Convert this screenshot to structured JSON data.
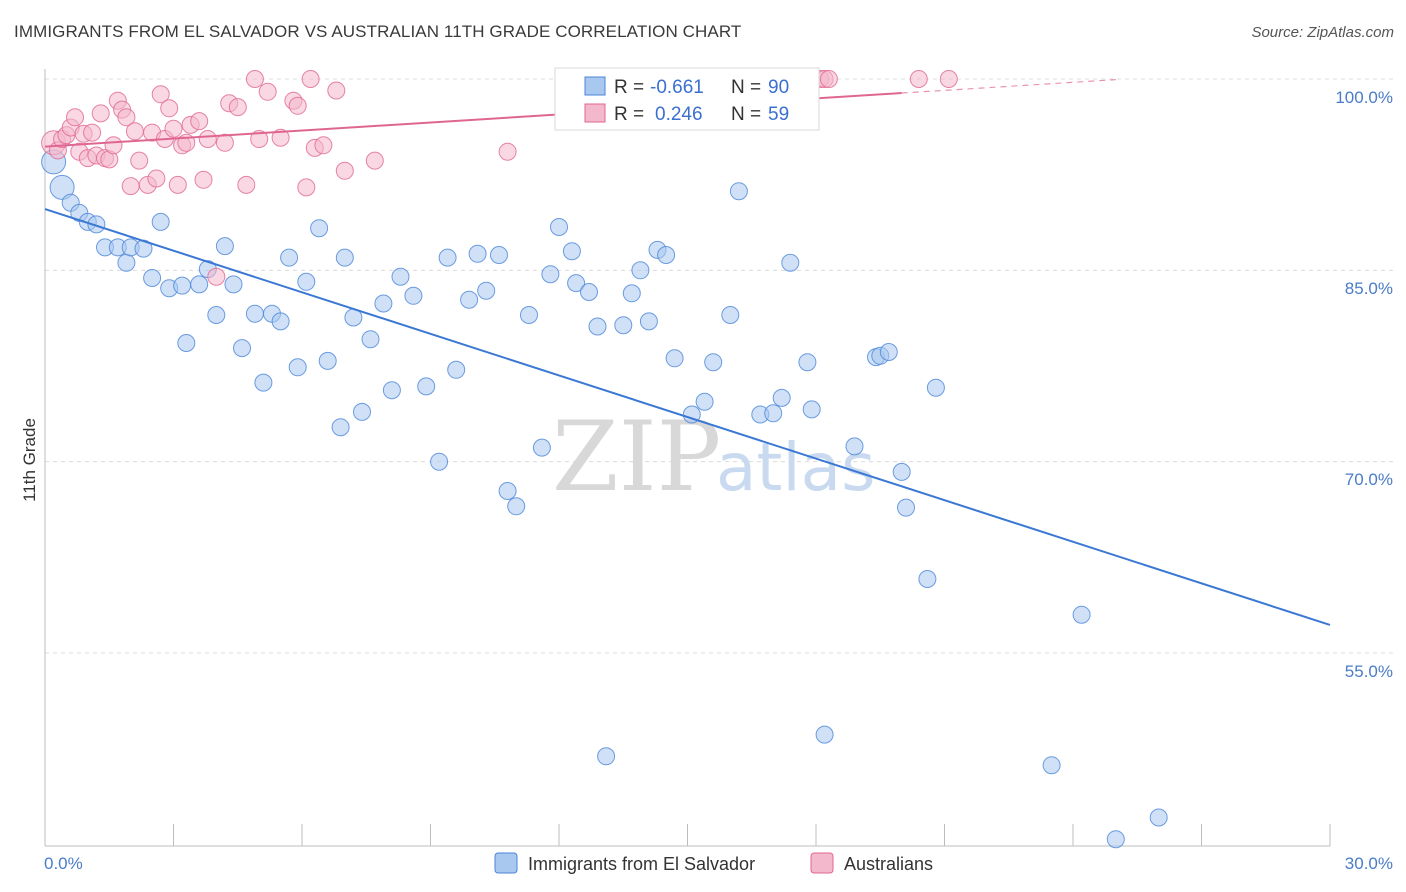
{
  "chart_data": {
    "type": "scatter",
    "title": "IMMIGRANTS FROM EL SALVADOR VS AUSTRALIAN 11TH GRADE CORRELATION CHART",
    "source": "Source: ZipAtlas.com",
    "ylabel": "11th Grade",
    "xlim": [
      0,
      30
    ],
    "ylim": [
      39,
      101
    ],
    "x_tick_labels": [
      "0.0%",
      "30.0%"
    ],
    "y_ticks": [
      100,
      85,
      70,
      55
    ],
    "y_tick_labels": [
      "100.0%",
      "85.0%",
      "70.0%",
      "55.0%"
    ],
    "watermark": {
      "zip": "ZIP",
      "atlas": "atlas"
    },
    "legend": {
      "rows": [
        {
          "r_label": "R =",
          "r_value": "-0.661",
          "n_label": "N =",
          "n_value": "90"
        },
        {
          "r_label": "R =",
          "r_value": "0.246",
          "n_label": "N =",
          "n_value": "59"
        }
      ]
    },
    "colors": {
      "blue": "#4a86d8",
      "blue_fill": "#a9c8f0",
      "pink": "#e06692",
      "pink_fill": "#f4b8cc"
    },
    "series": [
      {
        "name": "Immigrants from El Salvador",
        "color": "#4a86d8",
        "trend": {
          "x": [
            0,
            30
          ],
          "y": [
            89.8,
            57.2
          ]
        },
        "points": [
          [
            0.2,
            93.5
          ],
          [
            0.4,
            91.5
          ],
          [
            0.6,
            90.3
          ],
          [
            0.8,
            89.5
          ],
          [
            1.0,
            88.8
          ],
          [
            1.2,
            88.6
          ],
          [
            1.4,
            86.8
          ],
          [
            1.7,
            86.8
          ],
          [
            1.9,
            85.6
          ],
          [
            2.0,
            86.8
          ],
          [
            2.3,
            86.7
          ],
          [
            2.5,
            84.4
          ],
          [
            2.7,
            88.8
          ],
          [
            2.9,
            83.6
          ],
          [
            3.2,
            83.8
          ],
          [
            3.3,
            79.3
          ],
          [
            3.6,
            83.9
          ],
          [
            3.8,
            85.1
          ],
          [
            4.0,
            81.5
          ],
          [
            4.2,
            86.9
          ],
          [
            4.4,
            83.9
          ],
          [
            4.6,
            78.9
          ],
          [
            4.9,
            81.6
          ],
          [
            5.1,
            76.2
          ],
          [
            5.3,
            81.6
          ],
          [
            5.5,
            81.0
          ],
          [
            5.7,
            86.0
          ],
          [
            5.9,
            77.4
          ],
          [
            6.1,
            84.1
          ],
          [
            6.4,
            88.3
          ],
          [
            6.6,
            77.9
          ],
          [
            6.9,
            72.7
          ],
          [
            7.0,
            86.0
          ],
          [
            7.2,
            81.3
          ],
          [
            7.4,
            73.9
          ],
          [
            7.6,
            79.6
          ],
          [
            7.9,
            82.4
          ],
          [
            8.1,
            75.6
          ],
          [
            8.3,
            84.5
          ],
          [
            8.6,
            83.0
          ],
          [
            8.9,
            75.9
          ],
          [
            9.2,
            70.0
          ],
          [
            9.4,
            86.0
          ],
          [
            9.6,
            77.2
          ],
          [
            9.9,
            82.7
          ],
          [
            10.1,
            86.3
          ],
          [
            10.3,
            83.4
          ],
          [
            10.6,
            86.2
          ],
          [
            10.8,
            67.7
          ],
          [
            11.0,
            66.5
          ],
          [
            11.3,
            81.5
          ],
          [
            11.6,
            71.1
          ],
          [
            11.8,
            84.7
          ],
          [
            12.0,
            88.4
          ],
          [
            12.3,
            86.5
          ],
          [
            12.4,
            84.0
          ],
          [
            12.7,
            83.3
          ],
          [
            12.9,
            80.6
          ],
          [
            13.1,
            46.9
          ],
          [
            13.5,
            80.7
          ],
          [
            13.7,
            83.2
          ],
          [
            13.9,
            85.0
          ],
          [
            14.1,
            81.0
          ],
          [
            14.3,
            86.6
          ],
          [
            14.5,
            86.2
          ],
          [
            14.7,
            78.1
          ],
          [
            15.1,
            73.7
          ],
          [
            15.4,
            74.7
          ],
          [
            15.6,
            77.8
          ],
          [
            16.0,
            81.5
          ],
          [
            16.2,
            91.2
          ],
          [
            16.7,
            73.7
          ],
          [
            17.0,
            73.8
          ],
          [
            17.2,
            75.0
          ],
          [
            17.4,
            85.6
          ],
          [
            17.8,
            77.8
          ],
          [
            17.9,
            74.1
          ],
          [
            18.2,
            48.6
          ],
          [
            18.9,
            71.2
          ],
          [
            19.4,
            78.2
          ],
          [
            19.5,
            78.3
          ],
          [
            19.7,
            78.6
          ],
          [
            20.0,
            69.2
          ],
          [
            20.1,
            66.4
          ],
          [
            20.6,
            60.8
          ],
          [
            20.8,
            75.8
          ],
          [
            23.5,
            46.2
          ],
          [
            24.2,
            58.0
          ],
          [
            25.0,
            40.4
          ],
          [
            26.0,
            42.1
          ]
        ]
      },
      {
        "name": "Australians",
        "color": "#e06692",
        "trend": {
          "x": [
            0,
            20
          ],
          "y": [
            94.7,
            98.9
          ]
        },
        "trend_dashed": {
          "x": [
            20,
            25
          ],
          "y": [
            98.9,
            99.95
          ]
        },
        "points": [
          [
            0.2,
            95.0
          ],
          [
            0.3,
            94.4
          ],
          [
            0.4,
            95.3
          ],
          [
            0.5,
            95.6
          ],
          [
            0.6,
            96.2
          ],
          [
            0.7,
            97.0
          ],
          [
            0.8,
            94.3
          ],
          [
            0.9,
            95.7
          ],
          [
            1.0,
            93.8
          ],
          [
            1.1,
            95.8
          ],
          [
            1.2,
            94.0
          ],
          [
            1.3,
            97.3
          ],
          [
            1.4,
            93.8
          ],
          [
            1.5,
            93.7
          ],
          [
            1.6,
            94.8
          ],
          [
            1.7,
            98.3
          ],
          [
            1.8,
            97.6
          ],
          [
            1.9,
            97.0
          ],
          [
            2.0,
            91.6
          ],
          [
            2.1,
            95.9
          ],
          [
            2.2,
            93.6
          ],
          [
            2.4,
            91.7
          ],
          [
            2.5,
            95.8
          ],
          [
            2.6,
            92.2
          ],
          [
            2.7,
            98.8
          ],
          [
            2.8,
            95.3
          ],
          [
            2.9,
            97.7
          ],
          [
            3.0,
            96.1
          ],
          [
            3.1,
            91.7
          ],
          [
            3.2,
            94.8
          ],
          [
            3.3,
            95.0
          ],
          [
            3.4,
            96.4
          ],
          [
            3.6,
            96.7
          ],
          [
            3.7,
            92.1
          ],
          [
            3.8,
            95.3
          ],
          [
            4.0,
            84.5
          ],
          [
            4.2,
            95.0
          ],
          [
            4.3,
            98.1
          ],
          [
            4.5,
            97.8
          ],
          [
            4.7,
            91.7
          ],
          [
            4.9,
            100.0
          ],
          [
            5.0,
            95.3
          ],
          [
            5.2,
            99.0
          ],
          [
            5.5,
            95.4
          ],
          [
            5.8,
            98.3
          ],
          [
            5.9,
            97.9
          ],
          [
            6.1,
            91.5
          ],
          [
            6.2,
            100.0
          ],
          [
            6.3,
            94.6
          ],
          [
            6.5,
            94.8
          ],
          [
            6.8,
            99.1
          ],
          [
            7.0,
            92.8
          ],
          [
            7.7,
            93.6
          ],
          [
            10.8,
            94.3
          ],
          [
            18.1,
            100.0
          ],
          [
            18.2,
            100.0
          ],
          [
            18.3,
            100.0
          ],
          [
            20.4,
            100.0
          ],
          [
            21.1,
            100.0
          ]
        ]
      }
    ]
  }
}
